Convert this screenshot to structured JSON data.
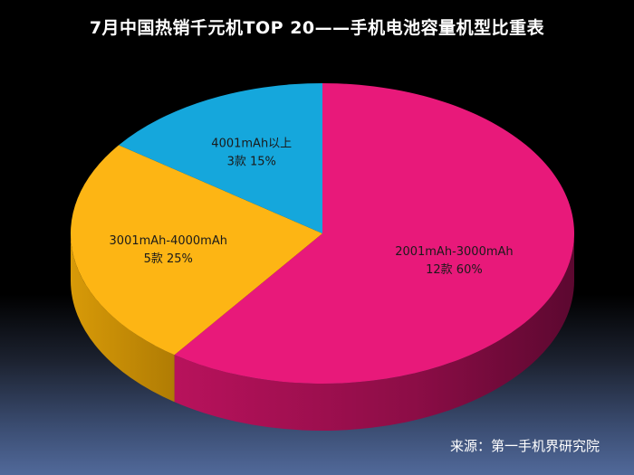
{
  "title": "7月中国热销千元机TOP 20——手机电池容量机型比重表",
  "source": "来源：第一手机界研究院",
  "chart_data": {
    "type": "pie",
    "title": "7月中国热销千元机TOP 20——手机电池容量机型比重表",
    "slices": [
      {
        "label": "2001mAh-3000mAh",
        "detail": "12款  60%",
        "count": 12,
        "percent": 60,
        "color": "#e8197a",
        "side_color": "#a3104f"
      },
      {
        "label": "3001mAh-4000mAh",
        "detail": "5款  25%",
        "count": 5,
        "percent": 25,
        "color": "#fdb514",
        "side_color": "#c48a05"
      },
      {
        "label": "4001mAh以上",
        "detail": "3款  15%",
        "count": 3,
        "percent": 15,
        "color": "#15a7dc",
        "side_color": "#0b7aa3"
      }
    ]
  }
}
